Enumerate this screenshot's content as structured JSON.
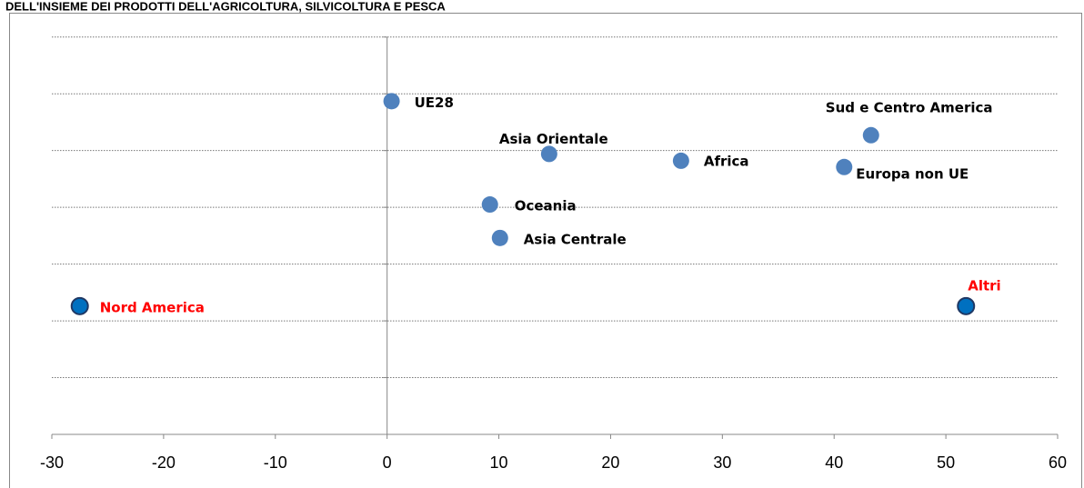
{
  "chart_data": {
    "type": "scatter",
    "title": "DELL'INSIEME DEI PRODOTTI DELL'AGRICOLTURA, SILVICOLTURA E PESCA",
    "xlim": [
      -30,
      60
    ],
    "xticks": [
      -30,
      -20,
      -10,
      0,
      10,
      20,
      30,
      40,
      50,
      60
    ],
    "ylim": [
      0,
      7.3
    ],
    "yticks": [
      0,
      1,
      2,
      3,
      4,
      5,
      6,
      7
    ],
    "grid": true,
    "points": [
      {
        "label": "UE28",
        "x": 0.4,
        "y": 5.87,
        "color": "#4f81bd",
        "label_color": "#000000"
      },
      {
        "label": "Asia Orientale",
        "x": 14.5,
        "y": 4.94,
        "color": "#4f81bd",
        "label_color": "#000000"
      },
      {
        "label": "Africa",
        "x": 26.3,
        "y": 4.82,
        "color": "#4f81bd",
        "label_color": "#000000"
      },
      {
        "label": "Sud e Centro America",
        "x": 43.3,
        "y": 5.27,
        "color": "#4f81bd",
        "label_color": "#000000"
      },
      {
        "label": "Europa non UE",
        "x": 40.9,
        "y": 4.71,
        "color": "#4f81bd",
        "label_color": "#000000"
      },
      {
        "label": "Oceania",
        "x": 9.2,
        "y": 4.05,
        "color": "#4f81bd",
        "label_color": "#000000"
      },
      {
        "label": "Asia Centrale",
        "x": 10.1,
        "y": 3.46,
        "color": "#4f81bd",
        "label_color": "#000000"
      },
      {
        "label": "Nord America",
        "x": -27.5,
        "y": 2.26,
        "color": "#0070c0",
        "label_color": "#ff0000"
      },
      {
        "label": "Altri",
        "x": 51.8,
        "y": 2.26,
        "color": "#0070c0",
        "label_color": "#ff0000"
      }
    ]
  }
}
